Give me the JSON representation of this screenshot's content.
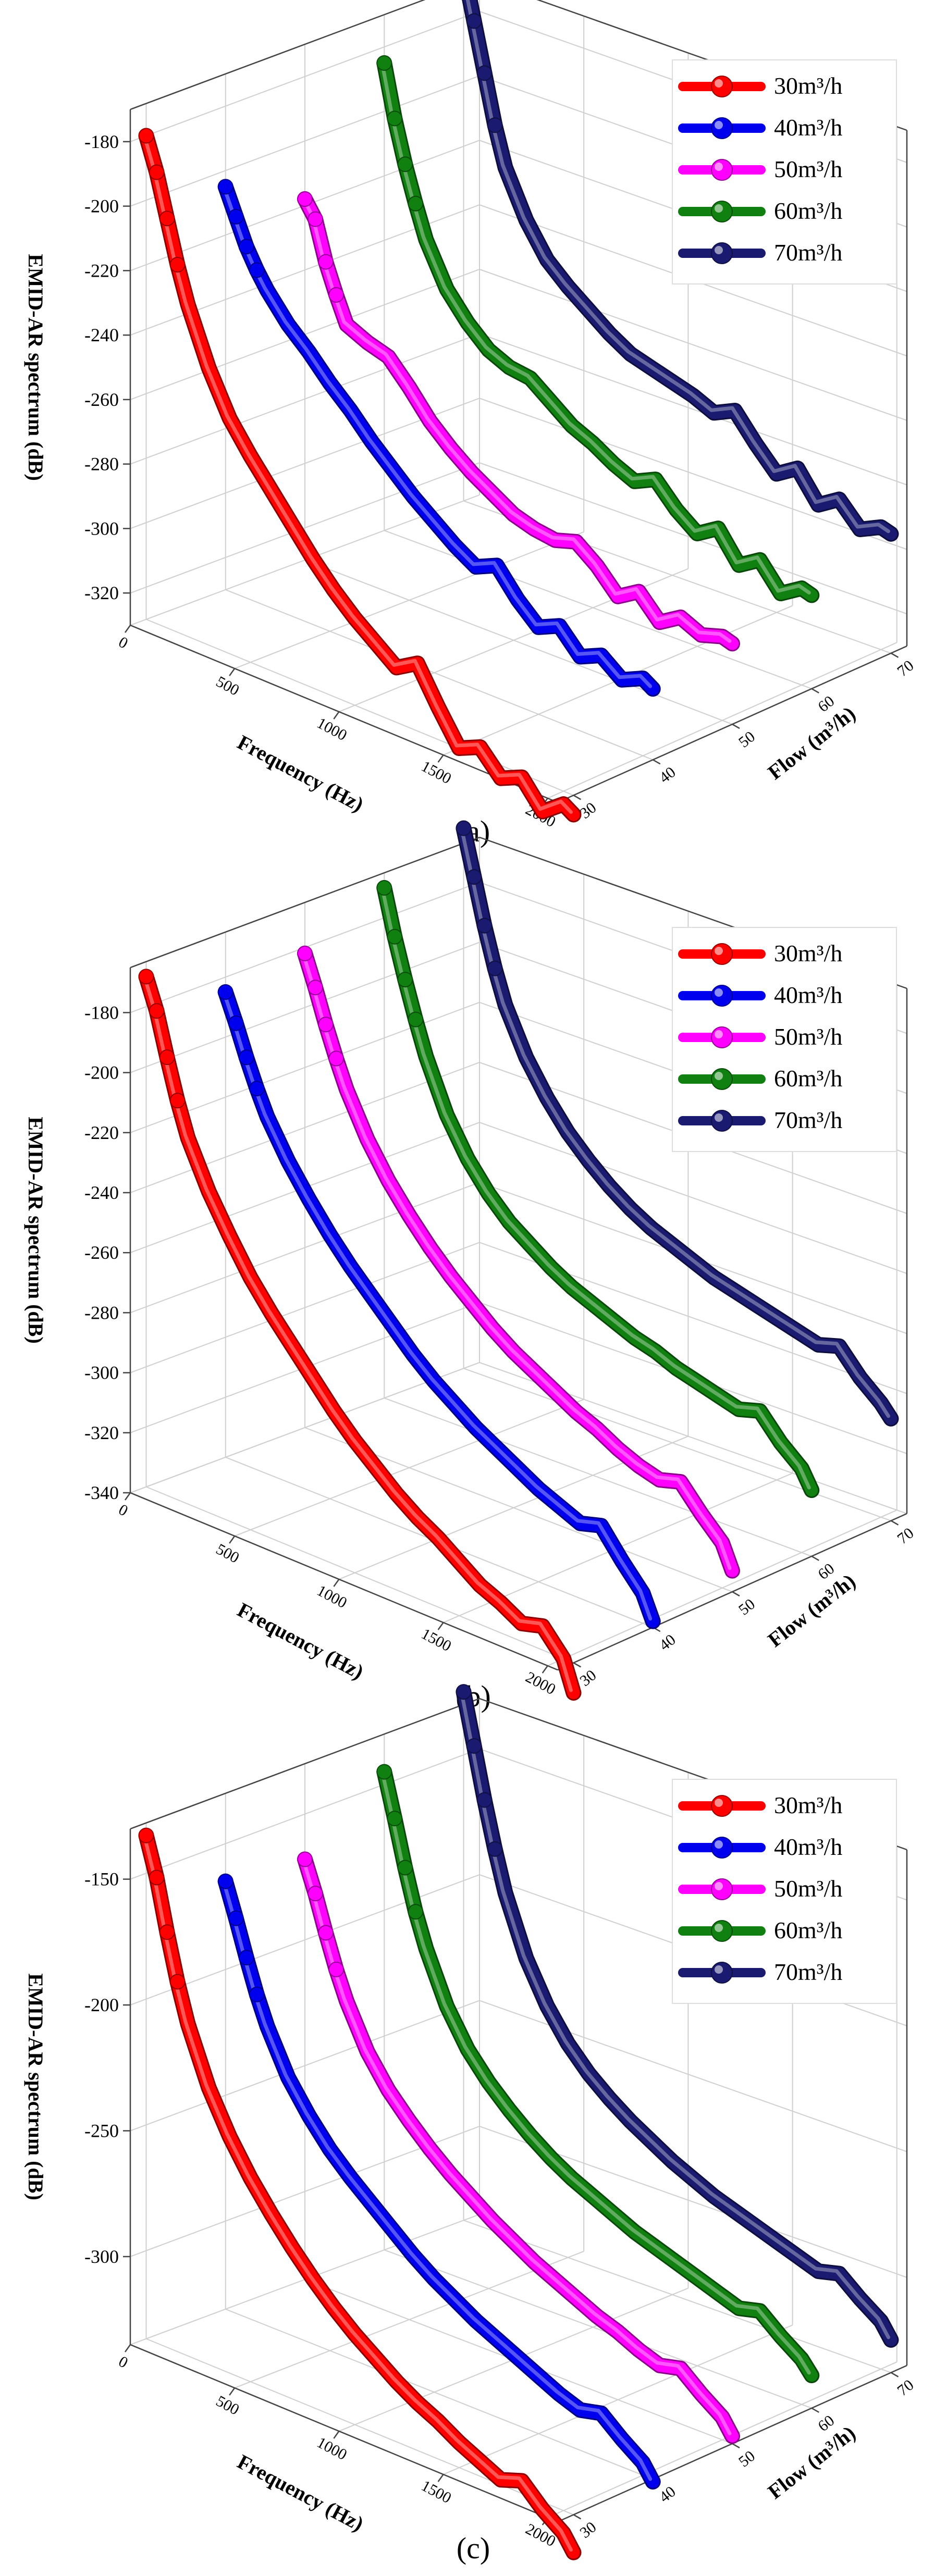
{
  "figure": {
    "panels": [
      "a",
      "b",
      "c"
    ]
  },
  "chart_data": [
    {
      "panel": "a",
      "caption": "(a)",
      "type": "line",
      "title": "",
      "xlabel": "Frequency (Hz)",
      "ylabel": "Flow (m³/h)",
      "zlabel": "EMID-AR spectrum (dB)",
      "xlim": [
        0,
        2048
      ],
      "ylim": [
        28,
        72
      ],
      "zlim": [
        -330,
        -170
      ],
      "x_ticks": [
        "0",
        "500",
        "1000",
        "1500",
        "2000"
      ],
      "y_ticks": [
        "30",
        "40",
        "50",
        "60",
        "70"
      ],
      "z_ticks": [
        "-180",
        "-200",
        "-220",
        "-240",
        "-260",
        "-280",
        "-300",
        "-320"
      ],
      "z_tick_values": [
        -180,
        -200,
        -220,
        -240,
        -260,
        -280,
        -300,
        -320
      ],
      "legend": [
        "30m³/h",
        "40m³/h",
        "50m³/h",
        "60m³/h",
        "70m³/h"
      ],
      "legend_position": "top-right",
      "grid": true,
      "series": [
        {
          "name": "30m³/h",
          "flow": 30,
          "color": "#ff0000",
          "frequency": [
            0,
            50,
            100,
            150,
            200,
            300,
            400,
            500,
            600,
            700,
            800,
            900,
            1000,
            1100,
            1200,
            1300,
            1400,
            1500,
            1600,
            1700,
            1800,
            1900,
            2000,
            2048
          ],
          "spectrum": [
            -180,
            -190,
            -203,
            -216,
            -227,
            -244,
            -257,
            -266,
            -274,
            -282,
            -290,
            -297,
            -303,
            -308,
            -313,
            -309,
            -320,
            -330,
            -327,
            -334,
            -331,
            -339,
            -334,
            -336
          ]
        },
        {
          "name": "40m³/h",
          "flow": 40,
          "color": "#0000ee",
          "frequency": [
            0,
            50,
            100,
            150,
            200,
            300,
            400,
            500,
            600,
            700,
            800,
            900,
            1000,
            1100,
            1200,
            1300,
            1400,
            1500,
            1600,
            1700,
            1800,
            1900,
            2000,
            2048
          ],
          "spectrum": [
            -205,
            -213,
            -221,
            -227,
            -232,
            -240,
            -246,
            -253,
            -259,
            -266,
            -272,
            -278,
            -283,
            -288,
            -292,
            -289,
            -297,
            -303,
            -300,
            -307,
            -304,
            -309,
            -306,
            -308
          ]
        },
        {
          "name": "50m³/h",
          "flow": 50,
          "color": "#ff00ff",
          "frequency": [
            0,
            50,
            100,
            150,
            200,
            300,
            400,
            500,
            600,
            700,
            800,
            900,
            1000,
            1100,
            1200,
            1300,
            1400,
            1500,
            1600,
            1700,
            1800,
            1900,
            2000,
            2048
          ],
          "spectrum": [
            -218,
            -223,
            -235,
            -244,
            -252,
            -255,
            -257,
            -264,
            -272,
            -278,
            -283,
            -287,
            -291,
            -293,
            -294,
            -292,
            -297,
            -304,
            -300,
            -307,
            -303,
            -306,
            -304,
            -305
          ]
        },
        {
          "name": "60m³/h",
          "flow": 60,
          "color": "#108010",
          "frequency": [
            0,
            50,
            100,
            150,
            200,
            300,
            400,
            500,
            600,
            700,
            800,
            900,
            1000,
            1100,
            1200,
            1300,
            1400,
            1500,
            1600,
            1700,
            1800,
            1900,
            2000,
            2048
          ],
          "spectrum": [
            -185,
            -201,
            -214,
            -225,
            -235,
            -248,
            -256,
            -262,
            -265,
            -266,
            -271,
            -276,
            -279,
            -283,
            -286,
            -283,
            -290,
            -295,
            -291,
            -300,
            -296,
            -304,
            -300,
            -301
          ]
        },
        {
          "name": "70m³/h",
          "flow": 70,
          "color": "#1a1a70",
          "frequency": [
            0,
            50,
            100,
            150,
            200,
            300,
            400,
            500,
            600,
            700,
            800,
            900,
            1000,
            1100,
            1200,
            1300,
            1400,
            1500,
            1600,
            1700,
            1800,
            1900,
            2000,
            2048
          ],
          "spectrum": [
            -165,
            -180,
            -195,
            -210,
            -222,
            -236,
            -246,
            -252,
            -257,
            -262,
            -266,
            -268,
            -270,
            -272,
            -275,
            -272,
            -280,
            -287,
            -283,
            -292,
            -288,
            -295,
            -292,
            -293
          ]
        }
      ]
    },
    {
      "panel": "b",
      "caption": "(b)",
      "type": "line",
      "title": "",
      "xlabel": "Frequency (Hz)",
      "ylabel": "Flow (m³/h)",
      "zlabel": "EMID-AR spectrum (dB)",
      "xlim": [
        0,
        2048
      ],
      "ylim": [
        28,
        72
      ],
      "zlim": [
        -340,
        -165
      ],
      "x_ticks": [
        "0",
        "500",
        "1000",
        "1500",
        "2000"
      ],
      "y_ticks": [
        "30",
        "40",
        "50",
        "60",
        "70"
      ],
      "z_ticks": [
        "-180",
        "-200",
        "-220",
        "-240",
        "-260",
        "-280",
        "-300",
        "-320",
        "-340"
      ],
      "z_tick_values": [
        -180,
        -200,
        -220,
        -240,
        -260,
        -280,
        -300,
        -320,
        -340
      ],
      "legend": [
        "30m³/h",
        "40m³/h",
        "50m³/h",
        "60m³/h",
        "70m³/h"
      ],
      "legend_position": "top-right",
      "grid": true,
      "series": [
        {
          "name": "30m³/h",
          "flow": 30,
          "color": "#ff0000",
          "frequency": [
            0,
            50,
            100,
            150,
            200,
            300,
            400,
            500,
            600,
            700,
            800,
            900,
            1000,
            1100,
            1200,
            1300,
            1400,
            1500,
            1600,
            1700,
            1800,
            1900,
            2000,
            2048
          ],
          "spectrum": [
            -170,
            -180,
            -194,
            -207,
            -218,
            -233,
            -245,
            -256,
            -265,
            -273,
            -281,
            -289,
            -296,
            -302,
            -308,
            -313,
            -317,
            -322,
            -327,
            -330,
            -334,
            -332,
            -340,
            -350
          ]
        },
        {
          "name": "40m³/h",
          "flow": 40,
          "color": "#0000ee",
          "frequency": [
            0,
            50,
            100,
            150,
            200,
            300,
            400,
            500,
            600,
            700,
            800,
            900,
            1000,
            1100,
            1200,
            1300,
            1400,
            1500,
            1600,
            1700,
            1800,
            1900,
            2000,
            2048
          ],
          "spectrum": [
            -185,
            -194,
            -204,
            -213,
            -221,
            -233,
            -243,
            -252,
            -260,
            -267,
            -274,
            -281,
            -287,
            -292,
            -297,
            -301,
            -305,
            -309,
            -312,
            -315,
            -313,
            -322,
            -330,
            -338
          ]
        },
        {
          "name": "50m³/h",
          "flow": 50,
          "color": "#ff00ff",
          "frequency": [
            0,
            50,
            100,
            150,
            200,
            300,
            400,
            500,
            600,
            700,
            800,
            900,
            1000,
            1100,
            1200,
            1300,
            1400,
            1500,
            1600,
            1700,
            1800,
            1900,
            2000,
            2048
          ],
          "spectrum": [
            -182,
            -192,
            -203,
            -213,
            -222,
            -236,
            -247,
            -256,
            -264,
            -271,
            -277,
            -283,
            -288,
            -292,
            -296,
            -300,
            -303,
            -307,
            -310,
            -312,
            -310,
            -318,
            -325,
            -333
          ]
        },
        {
          "name": "60m³/h",
          "flow": 60,
          "color": "#108010",
          "frequency": [
            0,
            50,
            100,
            150,
            200,
            300,
            400,
            500,
            600,
            700,
            800,
            900,
            1000,
            1100,
            1200,
            1300,
            1400,
            1500,
            1600,
            1700,
            1800,
            1900,
            2000,
            2048
          ],
          "spectrum": [
            -170,
            -185,
            -198,
            -210,
            -221,
            -238,
            -250,
            -259,
            -266,
            -271,
            -276,
            -280,
            -283,
            -286,
            -289,
            -291,
            -294,
            -296,
            -298,
            -300,
            -298,
            -306,
            -312,
            -318
          ]
        },
        {
          "name": "70m³/h",
          "flow": 70,
          "color": "#1a1a70",
          "frequency": [
            0,
            50,
            100,
            150,
            200,
            300,
            400,
            500,
            600,
            700,
            800,
            900,
            1000,
            1100,
            1200,
            1300,
            1400,
            1500,
            1600,
            1700,
            1800,
            1900,
            2000,
            2048
          ],
          "spectrum": [
            -160,
            -175,
            -190,
            -203,
            -214,
            -229,
            -240,
            -249,
            -256,
            -262,
            -267,
            -271,
            -274,
            -277,
            -280,
            -282,
            -284,
            -286,
            -288,
            -290,
            -288,
            -296,
            -302,
            -306
          ]
        }
      ]
    },
    {
      "panel": "c",
      "caption": "(c)",
      "type": "line",
      "title": "",
      "xlabel": "Frequency (Hz)",
      "ylabel": "Flow (m³/h)",
      "zlabel": "EMID-AR spectrum (dB)",
      "xlim": [
        0,
        2048
      ],
      "ylim": [
        28,
        72
      ],
      "zlim": [
        -335,
        -130
      ],
      "x_ticks": [
        "0",
        "500",
        "1000",
        "1500",
        "2000"
      ],
      "y_ticks": [
        "30",
        "40",
        "50",
        "60",
        "70"
      ],
      "z_ticks": [
        "-150",
        "-200",
        "-250",
        "-300"
      ],
      "z_tick_values": [
        -150,
        -200,
        -250,
        -300
      ],
      "legend": [
        "30m³/h",
        "40m³/h",
        "50m³/h",
        "60m³/h",
        "70m³/h"
      ],
      "legend_position": "top-right",
      "grid": true,
      "series": [
        {
          "name": "30m³/h",
          "flow": 30,
          "color": "#ff0000",
          "frequency": [
            0,
            50,
            100,
            150,
            200,
            300,
            400,
            500,
            600,
            700,
            800,
            900,
            1000,
            1100,
            1200,
            1300,
            1400,
            1500,
            1600,
            1700,
            1800,
            1900,
            2000,
            2048
          ],
          "spectrum": [
            -135,
            -150,
            -170,
            -188,
            -203,
            -225,
            -241,
            -254,
            -265,
            -275,
            -284,
            -292,
            -299,
            -305,
            -311,
            -316,
            -320,
            -325,
            -329,
            -333,
            -330,
            -338,
            -344,
            -350
          ]
        },
        {
          "name": "40m³/h",
          "flow": 40,
          "color": "#0000ee",
          "frequency": [
            0,
            50,
            100,
            150,
            200,
            300,
            400,
            500,
            600,
            700,
            800,
            900,
            1000,
            1100,
            1200,
            1300,
            1400,
            1500,
            1600,
            1700,
            1800,
            1900,
            2000,
            2048
          ],
          "spectrum": [
            -165,
            -178,
            -192,
            -205,
            -216,
            -233,
            -245,
            -255,
            -263,
            -270,
            -277,
            -284,
            -290,
            -295,
            -300,
            -304,
            -308,
            -312,
            -316,
            -319,
            -317,
            -324,
            -330,
            -336
          ]
        },
        {
          "name": "50m³/h",
          "flow": 50,
          "color": "#ff00ff",
          "frequency": [
            0,
            50,
            100,
            150,
            200,
            300,
            400,
            500,
            600,
            700,
            800,
            900,
            1000,
            1100,
            1200,
            1300,
            1400,
            1500,
            1600,
            1700,
            1800,
            1900,
            2000,
            2048
          ],
          "spectrum": [
            -168,
            -180,
            -194,
            -207,
            -218,
            -235,
            -247,
            -256,
            -264,
            -271,
            -277,
            -283,
            -288,
            -293,
            -297,
            -301,
            -305,
            -308,
            -312,
            -315,
            -313,
            -320,
            -326,
            -332
          ]
        },
        {
          "name": "60m³/h",
          "flow": 60,
          "color": "#108010",
          "frequency": [
            0,
            50,
            100,
            150,
            200,
            300,
            400,
            500,
            600,
            700,
            800,
            900,
            1000,
            1100,
            1200,
            1300,
            1400,
            1500,
            1600,
            1700,
            1800,
            1900,
            2000,
            2048
          ],
          "spectrum": [
            -145,
            -162,
            -180,
            -196,
            -209,
            -229,
            -243,
            -253,
            -261,
            -268,
            -274,
            -279,
            -283,
            -287,
            -291,
            -294,
            -297,
            -300,
            -303,
            -306,
            -304,
            -311,
            -317,
            -322
          ]
        },
        {
          "name": "70m³/h",
          "flow": 70,
          "color": "#1a1a70",
          "frequency": [
            0,
            50,
            100,
            150,
            200,
            300,
            400,
            500,
            600,
            700,
            800,
            900,
            1000,
            1100,
            1200,
            1300,
            1400,
            1500,
            1600,
            1700,
            1800,
            1900,
            2000,
            2048
          ],
          "spectrum": [
            -125,
            -145,
            -165,
            -183,
            -199,
            -222,
            -238,
            -250,
            -259,
            -266,
            -272,
            -277,
            -282,
            -286,
            -290,
            -293,
            -296,
            -299,
            -302,
            -305,
            -303,
            -310,
            -316,
            -322
          ]
        }
      ]
    }
  ]
}
